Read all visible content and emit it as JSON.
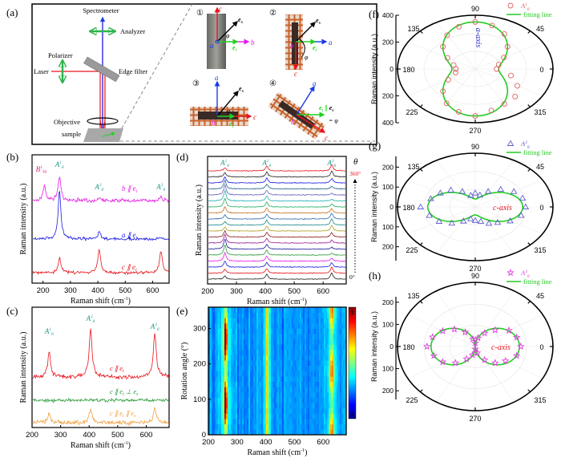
{
  "panel_labels": {
    "a": "(a)",
    "b": "(b)",
    "c": "(c)",
    "d": "(d)",
    "e": "(e)",
    "f": "(f)",
    "g": "(g)",
    "h": "(h)"
  },
  "schematic": {
    "spectrometer": "Spectrometer",
    "analyzer": "Analyzer",
    "polarizer": "Polarizer",
    "laser": "Laser",
    "edge_filter": "Edge filter",
    "objective": "Objective",
    "sample": "sample",
    "insets": [
      {
        "num": "①",
        "up": "c",
        "right": "b",
        "center": "a",
        "es": "e",
        "es_sub": "s",
        "ei": "e",
        "ei_sub": "i",
        "phi": "φ"
      },
      {
        "num": "②",
        "down": "c",
        "right": "a",
        "center": "b",
        "es": "e",
        "es_sub": "s",
        "ei": "e",
        "ei_sub": "i",
        "phi": "φ"
      },
      {
        "num": "③",
        "up": "a",
        "right": "c",
        "center": "b",
        "es": "e",
        "es_sub": "s",
        "ei": "e",
        "ei_sub": "i",
        "phi": "φ"
      },
      {
        "num": "④",
        "up": "a",
        "right": "c",
        "center": "b",
        "ei_es": "∥",
        "ei": "e",
        "ei_sub": "i",
        "es": "e",
        "es_sub": "s",
        "phi": "= φ"
      }
    ],
    "colors": {
      "beam_in": "#e8141c",
      "beam_out": "#1a1ae6",
      "polarizer": "#2db34a",
      "c_axis": "#e8141c",
      "a_axis": "#1a3be6",
      "b_axis": "#e619e6",
      "e_i": "#1ed21e"
    }
  },
  "chart_data": [
    {
      "id": "b",
      "type": "line",
      "xlabel": "Raman shift (cm",
      "xlabel_sup": "-1",
      "xlabel_end": ")",
      "ylabel": "Raman intensity (a.u.)",
      "xlim": [
        160,
        660
      ],
      "xticks": [
        200,
        300,
        400,
        500,
        600
      ],
      "mode_labels": [
        {
          "b": "B",
          "sup": "1",
          "sub": "3g",
          "x": 205,
          "color": "#e0187a"
        },
        {
          "b": "A",
          "sup": "1",
          "sub": "g",
          "x": 260,
          "color": "#1a9a8a"
        },
        {
          "b": "A",
          "sup": "2",
          "sub": "g",
          "x": 405,
          "color": "#1a9a8a"
        },
        {
          "b": "A",
          "sup": "3",
          "sub": "g",
          "x": 630,
          "color": "#1a9a8a"
        }
      ],
      "series": [
        {
          "name": "b ∥ e",
          "name_sub": "i",
          "color": "#e619e6",
          "peaks": [
            [
              205,
              18
            ],
            [
              260,
              30
            ],
            [
              405,
              3
            ],
            [
              630,
              4
            ]
          ],
          "noise": 2.2
        },
        {
          "name": "a ∥ e",
          "name_sub": "i",
          "color": "#1a1ae6",
          "peaks": [
            [
              260,
              60
            ],
            [
              405,
              9
            ],
            [
              630,
              2
            ]
          ],
          "noise": 1.8
        },
        {
          "name": "c ∥ e",
          "name_sub": "i",
          "color": "#e8141c",
          "peaks": [
            [
              260,
              18
            ],
            [
              405,
              30
            ],
            [
              630,
              28
            ]
          ],
          "noise": 1.8
        }
      ]
    },
    {
      "id": "c",
      "type": "line",
      "xlabel": "Raman shift (cm",
      "xlabel_sup": "-1",
      "xlabel_end": ")",
      "ylabel": "Raman intensity (a.u.)",
      "xlim": [
        200,
        680
      ],
      "xticks": [
        200,
        300,
        400,
        500,
        600
      ],
      "mode_labels": [
        {
          "b": "A",
          "sup": "1",
          "sub": "g",
          "x": 260,
          "color": "#1a9a8a"
        },
        {
          "b": "A",
          "sup": "2",
          "sub": "g",
          "x": 405,
          "color": "#1a9a8a"
        },
        {
          "b": "A",
          "sup": "3",
          "sub": "g",
          "x": 630,
          "color": "#1a9a8a"
        }
      ],
      "series": [
        {
          "name": "c ∥ e",
          "name_sub": "i",
          "color": "#e8141c",
          "peaks": [
            [
              260,
              30
            ],
            [
              405,
              60
            ],
            [
              630,
              55
            ]
          ],
          "noise": 2.6
        },
        {
          "name": "c ∥ e",
          "name_sub": "i",
          "name_end": " ⊥ e",
          "name_sub2": "s",
          "color": "#2a9a3a",
          "peaks": [],
          "noise": 2.0
        },
        {
          "name": "c ∥ e",
          "name_sub": "i",
          "name_end": " ∥ e",
          "name_sub2": "s",
          "color": "#f0a040",
          "peaks": [
            [
              260,
              12
            ],
            [
              405,
              18
            ],
            [
              630,
              18
            ]
          ],
          "noise": 2.6
        }
      ]
    },
    {
      "id": "d",
      "type": "line",
      "xlabel": "Raman shift (cm",
      "xlabel_sup": "-1",
      "xlabel_end": ")",
      "ylabel": "Raman intensity (a.u.)",
      "xlim": [
        200,
        680
      ],
      "xticks": [
        200,
        300,
        400,
        500,
        600
      ],
      "theta_label": "θ",
      "theta_max": "360°",
      "theta_min": "0°",
      "angles_deg": [
        0,
        20,
        40,
        60,
        80,
        100,
        120,
        140,
        160,
        180,
        200,
        220,
        240,
        260,
        280,
        300,
        320,
        340,
        360
      ],
      "colors": [
        "#222222",
        "#e8141c",
        "#1a1ae6",
        "#e619e6",
        "#2a9a3a",
        "#1a1a9a",
        "#9a1a9a",
        "#8a1a1a",
        "#b0a020",
        "#1a8a8a",
        "#2a6ab0",
        "#c07020",
        "#20b060",
        "#20b0b0",
        "#6060c0",
        "#206090",
        "#1a1ae6",
        "#222222",
        "#e8141c"
      ],
      "mode_labels": [
        {
          "b": "A",
          "sup": "1",
          "sub": "g",
          "x": 260,
          "color": "#1a9a8a"
        },
        {
          "b": "A",
          "sup": "2",
          "sub": "g",
          "x": 405,
          "color": "#1a9a8a"
        },
        {
          "b": "A",
          "sup": "3",
          "sub": "g",
          "x": 630,
          "color": "#1a9a8a"
        }
      ],
      "peak_positions": [
        260,
        405,
        630
      ]
    },
    {
      "id": "e",
      "type": "heatmap",
      "xlabel": "Raman shift (cm",
      "xlabel_sup": "-1",
      "xlabel_end": ")",
      "ylabel": "Rotation angle (°)",
      "xlim": [
        200,
        680
      ],
      "ylim": [
        0,
        360
      ],
      "xticks": [
        200,
        300,
        400,
        500,
        600
      ],
      "yticks": [
        0,
        100,
        200,
        300
      ],
      "colorbar": {
        "min": "0",
        "max": "1",
        "colormap": "jet"
      },
      "peak_positions": [
        260,
        405,
        630
      ]
    },
    {
      "id": "f",
      "type": "polar",
      "ylabel": "Raman intensity (a.u.)",
      "rmax": 400,
      "rticks": [
        "400",
        "200",
        "0",
        "200",
        "400"
      ],
      "angle_labels": [
        "0",
        "45",
        "90",
        "135",
        "180",
        "225",
        "270",
        "315"
      ],
      "legend": {
        "marker": "A",
        "marker_sub": "g",
        "marker_sup": "1",
        "line": "fitting line"
      },
      "annotation": "a-axis",
      "annotation_color": "#2a2ad0",
      "marker": "circle",
      "marker_color": "#e06060",
      "angles_deg": [
        0,
        15,
        30,
        45,
        60,
        75,
        90,
        105,
        120,
        135,
        150,
        165,
        180,
        195,
        210,
        225,
        240,
        255,
        270,
        285,
        300,
        315,
        330,
        345
      ],
      "values": [
        110,
        125,
        170,
        235,
        300,
        335,
        350,
        325,
        290,
        235,
        165,
        115,
        100,
        105,
        160,
        235,
        295,
        330,
        350,
        320,
        300,
        290,
        250,
        190
      ],
      "fit": {
        "A": 120,
        "B": 230,
        "form": "A + B sin^2(theta)"
      }
    },
    {
      "id": "g",
      "type": "polar",
      "ylabel": "Raman intensity (a.u.)",
      "rmax": 270,
      "rticks": [
        "200",
        "100",
        "0",
        "100",
        "200"
      ],
      "angle_labels": [
        "0",
        "45",
        "90",
        "135",
        "180",
        "225",
        "270",
        "315"
      ],
      "legend": {
        "marker": "A",
        "marker_sub": "g",
        "marker_sup": "2",
        "line": "fitting line"
      },
      "annotation": "c-axis",
      "annotation_color": "#e8141c",
      "marker": "triangle",
      "marker_color": "#6060d0",
      "angles_deg": [
        0,
        15,
        30,
        45,
        60,
        75,
        90,
        105,
        120,
        135,
        150,
        165,
        180,
        195,
        210,
        225,
        240,
        255,
        270,
        285,
        300,
        315,
        330,
        345
      ],
      "values": [
        175,
        170,
        155,
        125,
        90,
        62,
        70,
        60,
        90,
        120,
        140,
        160,
        190,
        165,
        145,
        115,
        82,
        62,
        68,
        75,
        95,
        110,
        140,
        165
      ],
      "fit": {
        "A": 40,
        "B": 125,
        "form": "A + B cos^2(theta)"
      }
    },
    {
      "id": "h",
      "type": "polar",
      "ylabel": "Raman intensity (a.u.)",
      "rmax": 290,
      "rticks": [
        "200",
        "100",
        "0",
        "100",
        "200"
      ],
      "angle_labels": [
        "0",
        "45",
        "90",
        "135",
        "180",
        "225",
        "270",
        "315"
      ],
      "legend": {
        "marker": "A",
        "marker_sub": "g",
        "marker_sup": "3",
        "line": "fitting line"
      },
      "annotation": "c-axis",
      "annotation_color": "#e8141c",
      "marker": "star",
      "marker_color": "#e040e0",
      "angles_deg": [
        0,
        15,
        30,
        45,
        60,
        75,
        90,
        105,
        120,
        135,
        150,
        165,
        180,
        195,
        210,
        225,
        240,
        255,
        270,
        285,
        300,
        315,
        330,
        345
      ],
      "values": [
        170,
        160,
        145,
        105,
        70,
        40,
        15,
        35,
        75,
        110,
        140,
        165,
        180,
        160,
        140,
        105,
        65,
        40,
        12,
        30,
        70,
        105,
        130,
        160
      ],
      "fit": {
        "A": 0,
        "B": 165,
        "form": "B |cos(theta)|"
      }
    }
  ],
  "colors": {
    "fit_line": "#22cc22",
    "frame": "#000000"
  }
}
